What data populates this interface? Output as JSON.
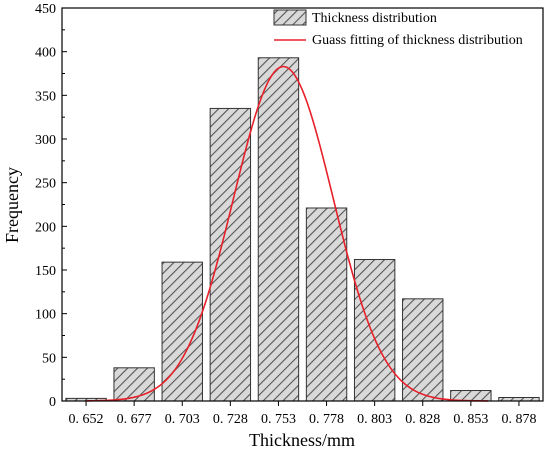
{
  "chart_data": {
    "type": "bar",
    "title": "",
    "xlabel": "Thickness/mm",
    "ylabel": "Frequency",
    "categories": [
      "0. 652",
      "0. 677",
      "0. 703",
      "0. 728",
      "0. 753",
      "0. 778",
      "0. 803",
      "0. 828",
      "0. 853",
      "0. 878"
    ],
    "values": [
      3,
      38,
      159,
      335,
      393,
      221,
      162,
      117,
      12,
      4
    ],
    "ylim": [
      0,
      450
    ],
    "yticks": [
      0,
      50,
      100,
      150,
      200,
      250,
      300,
      350,
      400,
      450
    ],
    "grid": false,
    "legend_position": "top-right",
    "series": [
      {
        "name": "Thickness distribution",
        "kind": "bar",
        "values": [
          3,
          38,
          159,
          335,
          393,
          221,
          162,
          117,
          12,
          4
        ]
      },
      {
        "name": "Guass fitting of thickness distribution",
        "kind": "line",
        "center": 0.755,
        "sigma": 0.026,
        "peak": 383
      }
    ],
    "colors": {
      "bar_fill": "#d9d9d9",
      "bar_hatch": "#555555",
      "bar_edge": "#333333",
      "fit_line": "#e8202a",
      "axis": "#000000"
    }
  }
}
